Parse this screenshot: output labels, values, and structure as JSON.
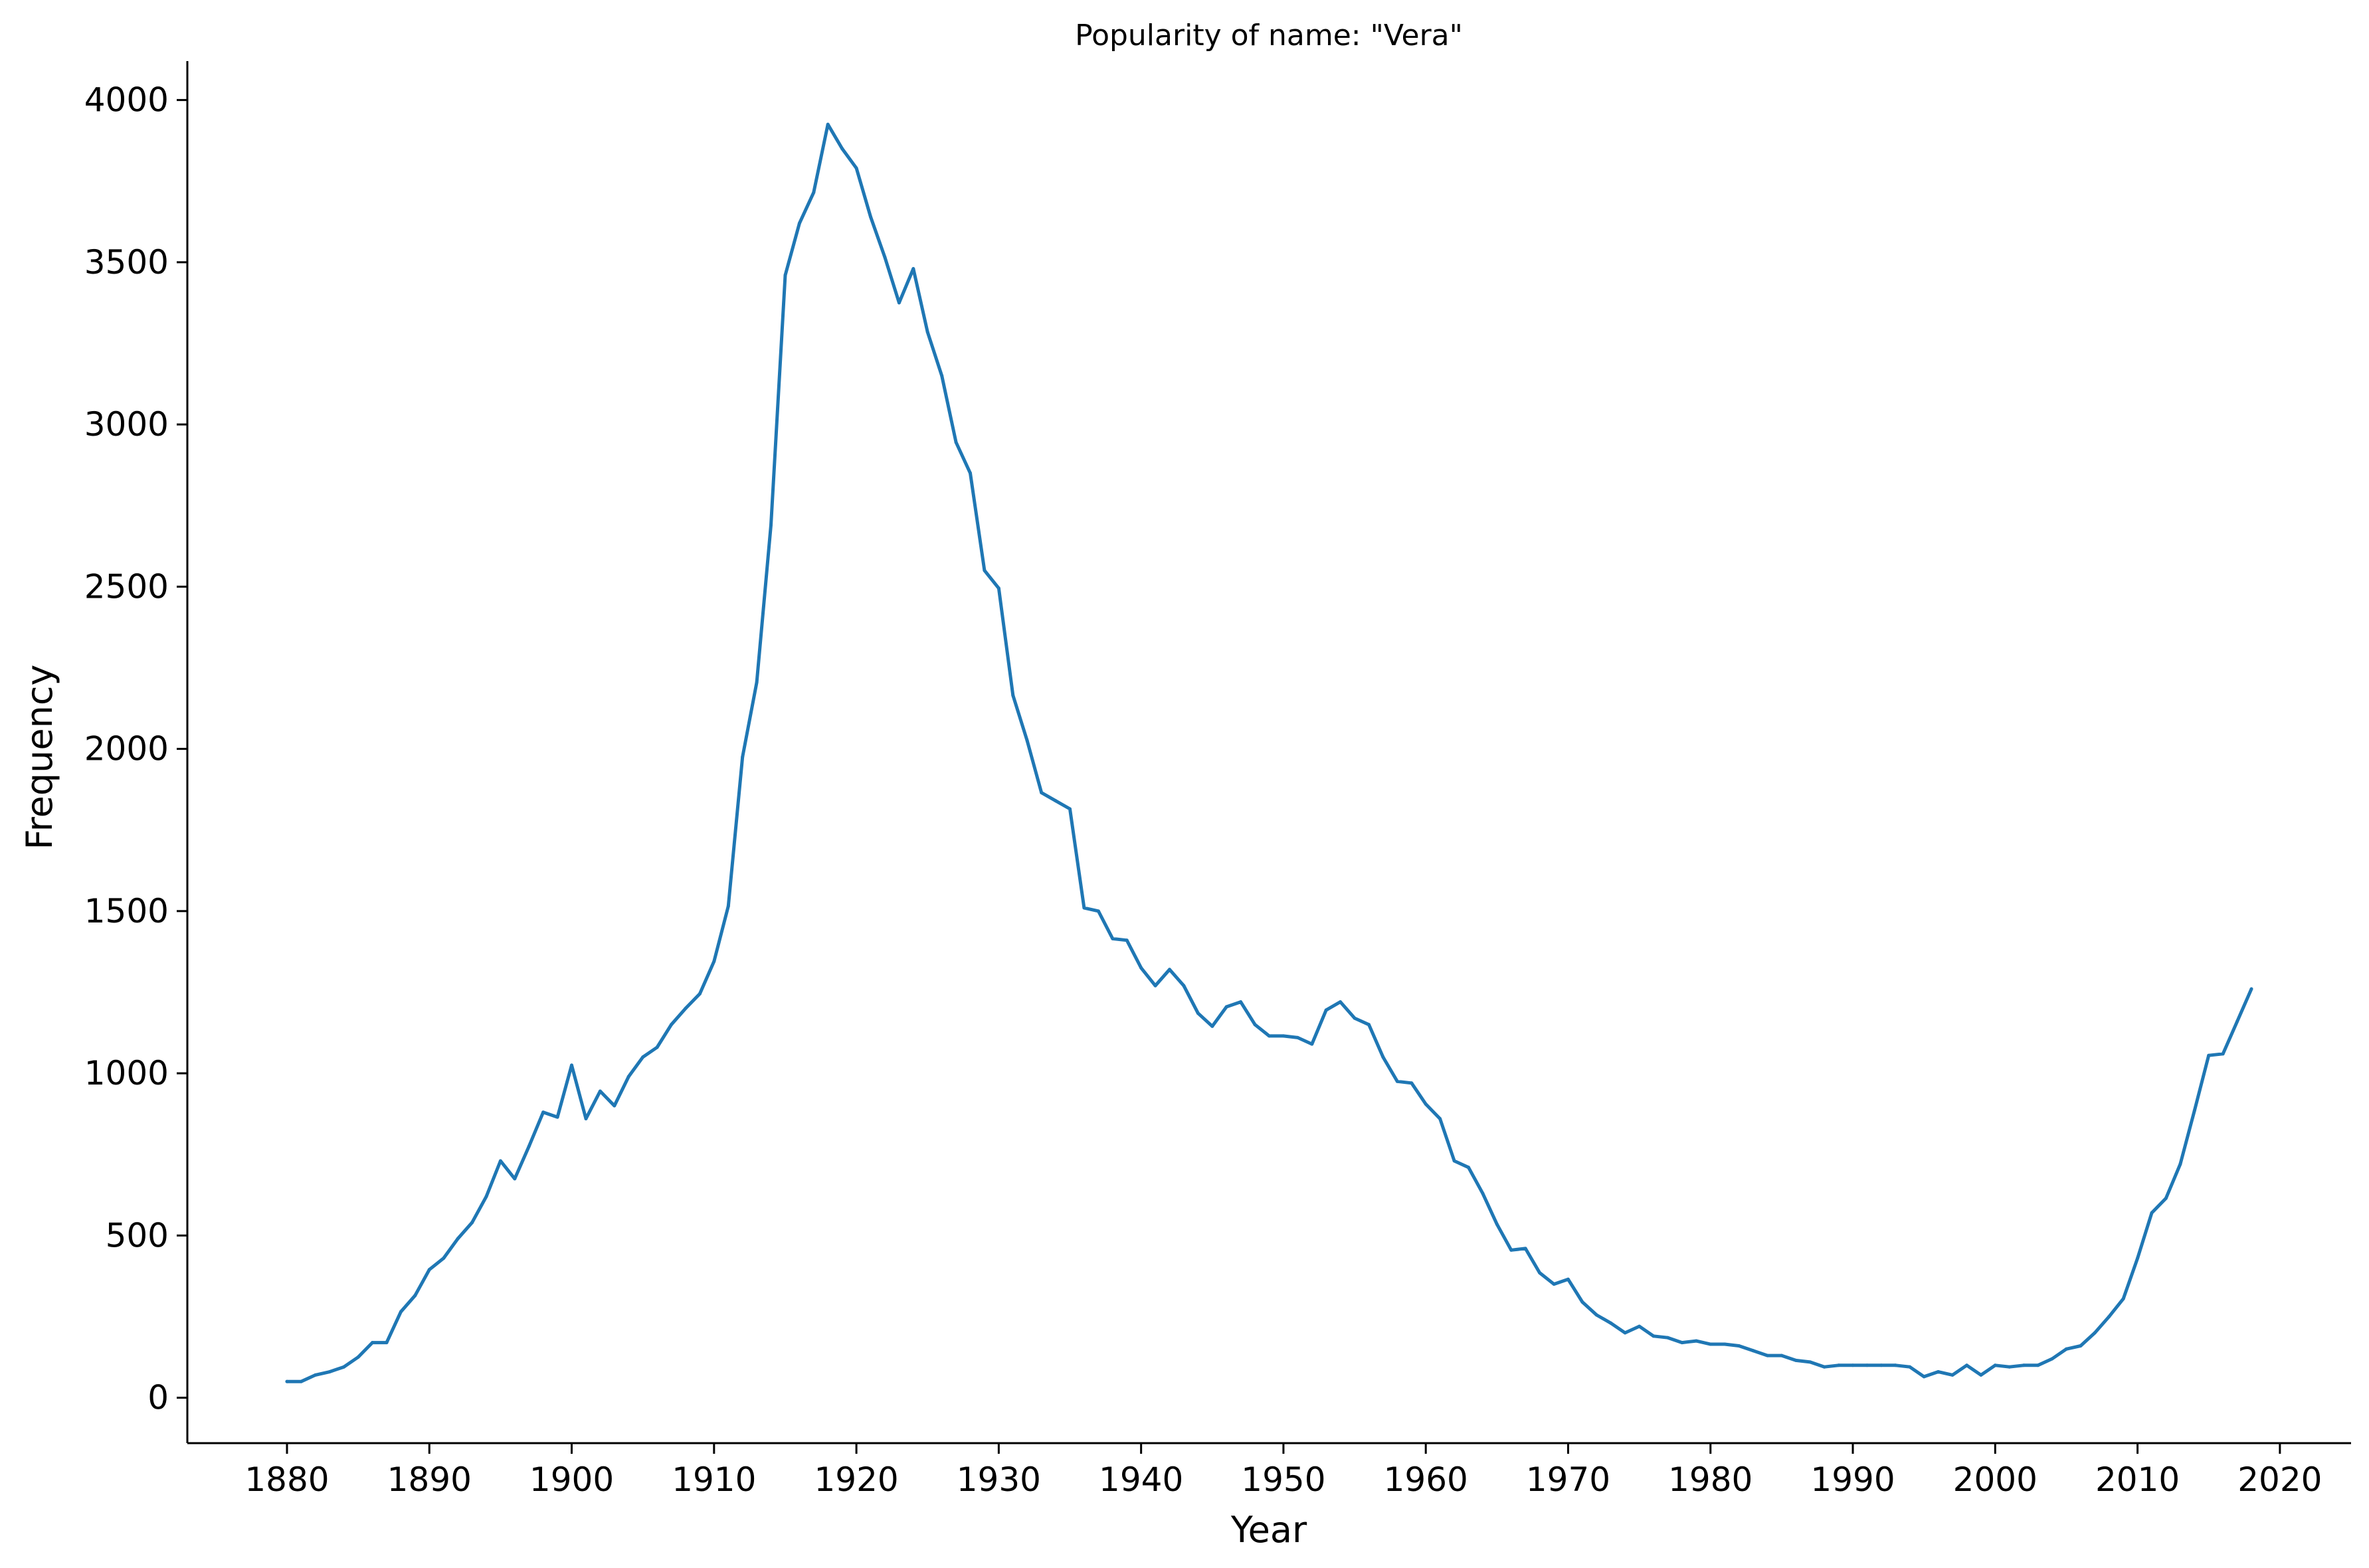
{
  "chart_data": {
    "type": "line",
    "title": "Popularity of name: \"Vera\"",
    "xlabel": "Year",
    "ylabel": "Frequency",
    "xlim": [
      1873,
      2025
    ],
    "ylim": [
      -140,
      4120
    ],
    "xticks": [
      1880,
      1890,
      1900,
      1910,
      1920,
      1930,
      1940,
      1950,
      1960,
      1970,
      1980,
      1990,
      2000,
      2010,
      2020
    ],
    "yticks": [
      0,
      500,
      1000,
      1500,
      2000,
      2500,
      3000,
      3500,
      4000
    ],
    "grid": false,
    "line_color": "#1f77b4",
    "series": [
      {
        "x": [
          1880,
          1881,
          1882,
          1883,
          1884,
          1885,
          1886,
          1887,
          1888,
          1889,
          1890,
          1891,
          1892,
          1893,
          1894,
          1895,
          1896,
          1897,
          1898,
          1899,
          1900,
          1901,
          1902,
          1903,
          1904,
          1905,
          1906,
          1907,
          1908,
          1909,
          1910,
          1911,
          1912,
          1913,
          1914,
          1915,
          1916,
          1917,
          1918,
          1919,
          1920,
          1921,
          1922,
          1923,
          1924,
          1925,
          1926,
          1927,
          1928,
          1929,
          1930,
          1931,
          1932,
          1933,
          1934,
          1935,
          1936,
          1937,
          1938,
          1939,
          1940,
          1941,
          1942,
          1943,
          1944,
          1945,
          1946,
          1947,
          1948,
          1949,
          1950,
          1951,
          1952,
          1953,
          1954,
          1955,
          1956,
          1957,
          1958,
          1959,
          1960,
          1961,
          1962,
          1963,
          1964,
          1965,
          1966,
          1967,
          1968,
          1969,
          1970,
          1971,
          1972,
          1973,
          1974,
          1975,
          1976,
          1977,
          1978,
          1979,
          1980,
          1981,
          1982,
          1983,
          1984,
          1985,
          1986,
          1987,
          1988,
          1989,
          1990,
          1991,
          1992,
          1993,
          1994,
          1995,
          1996,
          1997,
          1998,
          1999,
          2000,
          2001,
          2002,
          2003,
          2004,
          2005,
          2006,
          2007,
          2008,
          2009,
          2010,
          2011,
          2012,
          2013,
          2014,
          2015,
          2016,
          2017,
          2018
        ],
        "values": [
          50,
          50,
          70,
          80,
          95,
          125,
          170,
          170,
          265,
          315,
          395,
          430,
          490,
          540,
          620,
          730,
          675,
          775,
          880,
          865,
          1025,
          860,
          945,
          900,
          990,
          1050,
          1080,
          1150,
          1200,
          1245,
          1345,
          1515,
          1975,
          2205,
          2690,
          3460,
          3620,
          3715,
          3925,
          3850,
          3790,
          3640,
          3515,
          3375,
          3480,
          3285,
          3150,
          2945,
          2850,
          2550,
          2495,
          2165,
          2025,
          1865,
          1840,
          1815,
          1510,
          1500,
          1415,
          1410,
          1325,
          1270,
          1320,
          1270,
          1185,
          1145,
          1205,
          1220,
          1150,
          1115,
          1115,
          1110,
          1090,
          1195,
          1220,
          1170,
          1150,
          1050,
          975,
          970,
          905,
          860,
          730,
          710,
          630,
          535,
          455,
          460,
          385,
          350,
          365,
          295,
          255,
          230,
          200,
          220,
          190,
          185,
          170,
          175,
          165,
          165,
          160,
          145,
          130,
          130,
          115,
          110,
          95,
          100,
          100,
          100,
          100,
          100,
          95,
          65,
          80,
          70,
          100,
          70,
          100,
          95,
          100,
          100,
          120,
          150,
          160,
          200,
          250,
          305,
          430,
          570,
          615,
          720,
          885,
          1055,
          1060,
          1160,
          1260
        ]
      }
    ]
  }
}
